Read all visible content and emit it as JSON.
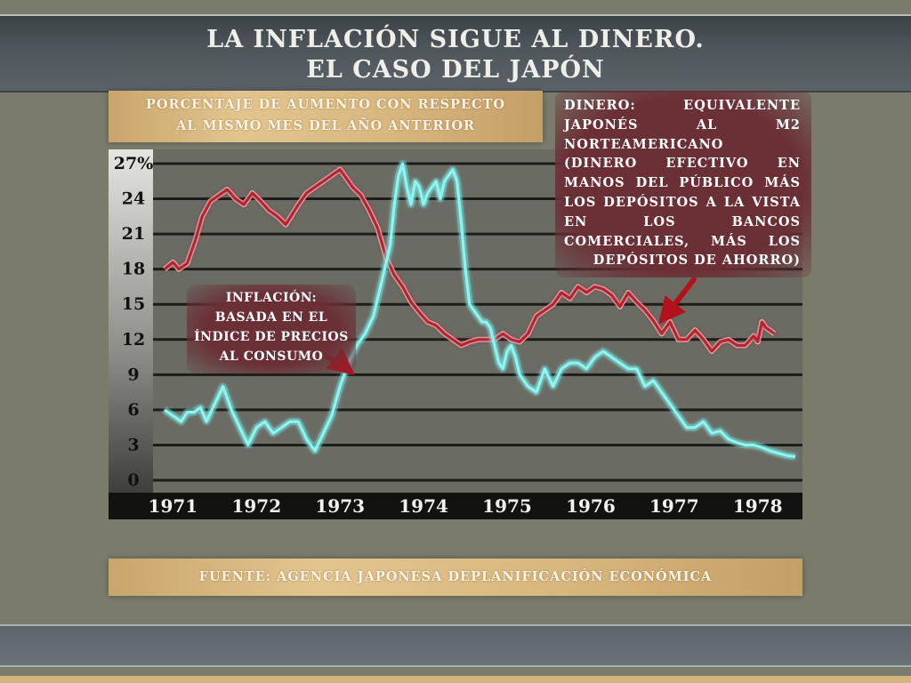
{
  "title": {
    "line1": "LA INFLACIÓN SIGUE AL DINERO.",
    "line2": "EL CASO DEL JAPÓN"
  },
  "subtitle": {
    "line1": "PORCENTAJE DE AUMENTO CON RESPECTO",
    "line2": "AL MISMO MES DEL AÑO ANTERIOR"
  },
  "annotations": {
    "money": {
      "lines": [
        "DINERO: EQUIVALENTE",
        "JAPONÉS AL M2",
        "NORTEAMERICANO",
        "(DINERO EFECTIVO EN",
        "MANOS DEL PÚBLICO MÁS",
        "LOS DEPÓSITOS A LA VISTA",
        "EN LOS BANCOS",
        "COMERCIALES, MÁS LOS",
        "DEPÓSITOS DE AHORRO)"
      ]
    },
    "inflation": {
      "lines": [
        "INFLACIÓN:",
        "BASADA EN EL",
        "ÍNDICE DE PRECIOS",
        "AL CONSUMO"
      ]
    }
  },
  "source": "FUENTE: AGENCIA JAPONESA DEPLANIFICACIÓN ECONÓMICA",
  "colors": {
    "money_line": "#b8232f",
    "inflation_line": "#8ef6ef",
    "arrow": "#b3121d",
    "plot_bg": "#6a6b63",
    "grid": "#1c1d1a"
  },
  "chart_data": {
    "type": "line",
    "title": "",
    "xlabel": "",
    "ylabel": "",
    "x_ticks": [
      "1971",
      "1972",
      "1973",
      "1974",
      "1975",
      "1976",
      "1977",
      "1978"
    ],
    "y_ticks": [
      "0",
      "3",
      "6",
      "9",
      "12",
      "15",
      "18",
      "21",
      "24",
      "27%"
    ],
    "ylim": [
      0,
      27
    ],
    "xlim": [
      1970.95,
      1978.5
    ],
    "grid": true,
    "series": [
      {
        "key": "money",
        "color": "#b8232f",
        "x": [
          1970.95,
          1971.05,
          1971.12,
          1971.22,
          1971.32,
          1971.4,
          1971.5,
          1971.6,
          1971.7,
          1971.8,
          1971.9,
          1972.0,
          1972.1,
          1972.2,
          1972.3,
          1972.4,
          1972.55,
          1972.65,
          1972.75,
          1972.85,
          1972.95,
          1973.05,
          1973.12,
          1973.2,
          1973.3,
          1973.4,
          1973.5,
          1973.6,
          1973.7,
          1973.8,
          1973.9,
          1974.0,
          1974.1,
          1974.2,
          1974.3,
          1974.4,
          1974.5,
          1974.6,
          1974.7,
          1974.8,
          1974.9,
          1975.0,
          1975.1,
          1975.2,
          1975.3,
          1975.4,
          1975.5,
          1975.6,
          1975.7,
          1975.8,
          1975.9,
          1976.0,
          1976.1,
          1976.2,
          1976.3,
          1976.4,
          1976.5,
          1976.6,
          1976.7,
          1976.8,
          1976.9,
          1977.0,
          1977.1,
          1977.2,
          1977.3,
          1977.4,
          1977.5,
          1977.6,
          1977.7,
          1977.8,
          1977.9,
          1978.0,
          1978.05,
          1978.1,
          1978.15,
          1978.25
        ],
        "values": [
          18.0,
          18.6,
          18.0,
          18.5,
          20.5,
          22.5,
          23.8,
          24.3,
          24.8,
          24.0,
          23.5,
          24.5,
          23.8,
          23.0,
          22.5,
          21.8,
          23.5,
          24.5,
          25.0,
          25.5,
          26.0,
          26.5,
          25.8,
          25.0,
          24.3,
          23.0,
          21.5,
          19.0,
          17.5,
          16.5,
          15.2,
          14.3,
          13.5,
          13.2,
          12.5,
          12.0,
          11.5,
          11.8,
          12.0,
          12.0,
          12.0,
          12.5,
          12.0,
          11.8,
          12.5,
          14.0,
          14.5,
          15.0,
          16.0,
          15.5,
          16.5,
          16.0,
          16.5,
          16.3,
          15.8,
          14.8,
          16.0,
          15.2,
          14.5,
          13.6,
          12.5,
          13.5,
          12.0,
          12.0,
          12.8,
          12.0,
          11.0,
          11.8,
          12.0,
          11.5,
          11.5,
          12.3,
          11.8,
          13.5,
          13.0,
          12.5
        ]
      },
      {
        "key": "inflation",
        "color": "#8ef6ef",
        "x": [
          1970.95,
          1971.05,
          1971.15,
          1971.22,
          1971.3,
          1971.38,
          1971.45,
          1971.55,
          1971.65,
          1971.75,
          1971.85,
          1971.95,
          1972.05,
          1972.15,
          1972.25,
          1972.35,
          1972.45,
          1972.55,
          1972.65,
          1972.75,
          1972.85,
          1972.95,
          1973.05,
          1973.15,
          1973.25,
          1973.35,
          1973.45,
          1973.55,
          1973.65,
          1973.7,
          1973.75,
          1973.8,
          1973.85,
          1973.9,
          1973.95,
          1974.0,
          1974.05,
          1974.1,
          1974.15,
          1974.2,
          1974.25,
          1974.3,
          1974.4,
          1974.45,
          1974.5,
          1974.55,
          1974.6,
          1974.65,
          1974.7,
          1974.75,
          1974.8,
          1974.85,
          1974.9,
          1974.95,
          1975.0,
          1975.05,
          1975.1,
          1975.15,
          1975.2,
          1975.3,
          1975.4,
          1975.5,
          1975.6,
          1975.7,
          1975.8,
          1975.9,
          1976.0,
          1976.1,
          1976.2,
          1976.3,
          1976.4,
          1976.5,
          1976.6,
          1976.7,
          1976.8,
          1976.9,
          1977.0,
          1977.1,
          1977.2,
          1977.3,
          1977.4,
          1977.5,
          1977.6,
          1977.7,
          1977.8,
          1977.9,
          1978.0,
          1978.1,
          1978.2,
          1978.3,
          1978.4,
          1978.5
        ],
        "values": [
          6.0,
          5.5,
          5.0,
          5.8,
          5.8,
          6.2,
          5.0,
          6.5,
          8.0,
          6.0,
          4.5,
          3.0,
          4.5,
          5.0,
          4.0,
          4.5,
          5.0,
          5.0,
          3.5,
          2.5,
          4.0,
          5.5,
          8.0,
          10.0,
          11.5,
          12.5,
          14.0,
          17.0,
          20.0,
          23.5,
          26.0,
          27.0,
          25.0,
          23.5,
          25.5,
          25.0,
          23.5,
          24.5,
          25.0,
          25.5,
          24.0,
          25.5,
          26.5,
          25.5,
          22.0,
          18.0,
          15.0,
          14.5,
          14.0,
          13.5,
          13.5,
          13.0,
          11.5,
          10.0,
          9.5,
          11.0,
          11.5,
          10.5,
          9.0,
          8.0,
          7.5,
          9.5,
          8.0,
          9.5,
          10.0,
          10.0,
          9.5,
          10.5,
          11.0,
          10.5,
          10.0,
          9.5,
          9.5,
          8.0,
          8.5,
          7.5,
          6.5,
          5.5,
          4.5,
          4.5,
          5.0,
          4.0,
          4.2,
          3.5,
          3.2,
          3.0,
          3.0,
          2.8,
          2.5,
          2.3,
          2.1,
          2.0
        ]
      }
    ]
  }
}
